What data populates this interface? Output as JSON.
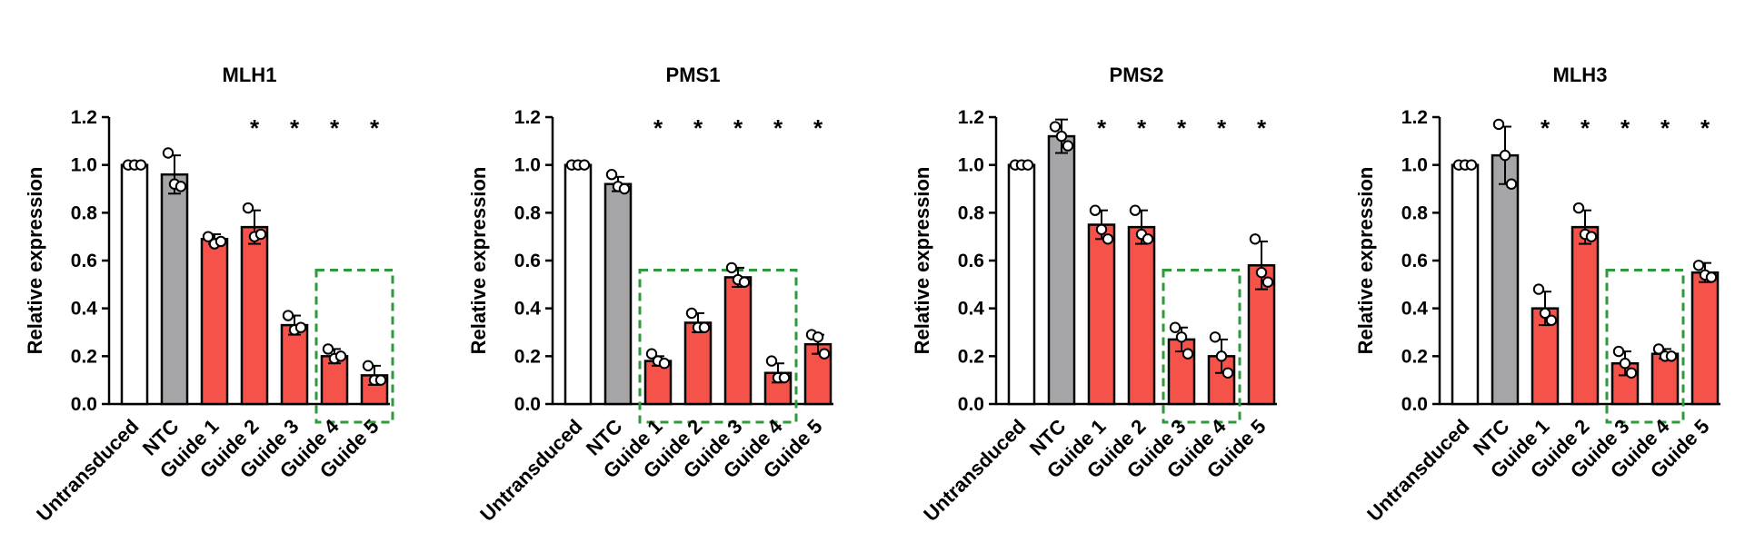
{
  "colors": {
    "untransduced": "#ffffff",
    "ntc": "#a6a6a8",
    "guide": "#f5524a",
    "highlight_box": "#2e9a3a",
    "axis": "#000000"
  },
  "chart_data": [
    {
      "type": "bar",
      "title": "MLH1",
      "ylabel": "Relative expression",
      "xlabel": "",
      "ylim": [
        0,
        1.2
      ],
      "yticks": [
        "0.0",
        "0.2",
        "0.4",
        "0.6",
        "0.8",
        "1.0",
        "1.2"
      ],
      "categories": [
        "Untransduced",
        "NTC",
        "Guide 1",
        "Guide 2",
        "Guide 3",
        "Guide 4",
        "Guide 5"
      ],
      "values": [
        1.0,
        0.96,
        0.69,
        0.74,
        0.33,
        0.2,
        0.12
      ],
      "errors": [
        0.0,
        0.08,
        0.02,
        0.07,
        0.04,
        0.03,
        0.04
      ],
      "points": [
        [
          1.0,
          1.0,
          1.0
        ],
        [
          1.05,
          0.92,
          0.91
        ],
        [
          0.7,
          0.67,
          0.68
        ],
        [
          0.82,
          0.7,
          0.71
        ],
        [
          0.37,
          0.31,
          0.32
        ],
        [
          0.23,
          0.19,
          0.2
        ],
        [
          0.16,
          0.1,
          0.1
        ]
      ],
      "significance": [
        "",
        "",
        "",
        "*",
        "*",
        "*",
        "*"
      ],
      "highlight": [
        "Guide 4",
        "Guide 5"
      ],
      "grid": false,
      "legend": "none"
    },
    {
      "type": "bar",
      "title": "PMS1",
      "ylabel": "Relative expression",
      "xlabel": "",
      "ylim": [
        0,
        1.2
      ],
      "yticks": [
        "0.0",
        "0.2",
        "0.4",
        "0.6",
        "0.8",
        "1.0",
        "1.2"
      ],
      "categories": [
        "Untransduced",
        "NTC",
        "Guide 1",
        "Guide 2",
        "Guide 3",
        "Guide 4",
        "Guide 5"
      ],
      "values": [
        1.0,
        0.92,
        0.18,
        0.34,
        0.53,
        0.13,
        0.25
      ],
      "errors": [
        0.0,
        0.03,
        0.02,
        0.04,
        0.04,
        0.04,
        0.04
      ],
      "points": [
        [
          1.0,
          1.0,
          1.0
        ],
        [
          0.96,
          0.91,
          0.9
        ],
        [
          0.21,
          0.18,
          0.17
        ],
        [
          0.38,
          0.32,
          0.32
        ],
        [
          0.57,
          0.52,
          0.51
        ],
        [
          0.18,
          0.11,
          0.11
        ],
        [
          0.29,
          0.28,
          0.21
        ]
      ],
      "significance": [
        "",
        "",
        "*",
        "*",
        "*",
        "*",
        "*"
      ],
      "highlight": [
        "Guide 1",
        "Guide 4"
      ],
      "grid": false,
      "legend": "none"
    },
    {
      "type": "bar",
      "title": "PMS2",
      "ylabel": "Relative expression",
      "xlabel": "",
      "ylim": [
        0,
        1.2
      ],
      "yticks": [
        "0.0",
        "0.2",
        "0.4",
        "0.6",
        "0.8",
        "1.0",
        "1.2"
      ],
      "categories": [
        "Untransduced",
        "NTC",
        "Guide 1",
        "Guide 2",
        "Guide 3",
        "Guide 4",
        "Guide 5"
      ],
      "values": [
        1.0,
        1.12,
        0.75,
        0.74,
        0.27,
        0.2,
        0.58
      ],
      "errors": [
        0.0,
        0.07,
        0.06,
        0.07,
        0.05,
        0.07,
        0.1
      ],
      "points": [
        [
          1.0,
          1.0,
          1.0
        ],
        [
          1.16,
          1.12,
          1.08
        ],
        [
          0.81,
          0.73,
          0.69
        ],
        [
          0.81,
          0.71,
          0.69
        ],
        [
          0.32,
          0.28,
          0.21
        ],
        [
          0.28,
          0.2,
          0.13
        ],
        [
          0.69,
          0.55,
          0.51
        ]
      ],
      "significance": [
        "",
        "",
        "*",
        "*",
        "*",
        "*",
        "*"
      ],
      "highlight": [
        "Guide 3",
        "Guide 4"
      ],
      "grid": false,
      "legend": "none"
    },
    {
      "type": "bar",
      "title": "MLH3",
      "ylabel": "Relative expression",
      "xlabel": "",
      "ylim": [
        0,
        1.2
      ],
      "yticks": [
        "0.0",
        "0.2",
        "0.4",
        "0.6",
        "0.8",
        "1.0",
        "1.2"
      ],
      "categories": [
        "Untransduced",
        "NTC",
        "Guide 1",
        "Guide 2",
        "Guide 3",
        "Guide 4",
        "Guide 5"
      ],
      "values": [
        1.0,
        1.04,
        0.4,
        0.74,
        0.17,
        0.21,
        0.55
      ],
      "errors": [
        0.0,
        0.12,
        0.07,
        0.07,
        0.05,
        0.02,
        0.04
      ],
      "points": [
        [
          1.0,
          1.0,
          1.0
        ],
        [
          1.17,
          1.04,
          0.92
        ],
        [
          0.48,
          0.38,
          0.35
        ],
        [
          0.82,
          0.71,
          0.7
        ],
        [
          0.22,
          0.17,
          0.13
        ],
        [
          0.23,
          0.2,
          0.2
        ],
        [
          0.58,
          0.54,
          0.53
        ]
      ],
      "significance": [
        "",
        "",
        "*",
        "*",
        "*",
        "*",
        "*"
      ],
      "highlight": [
        "Guide 3",
        "Guide 4"
      ],
      "grid": false,
      "legend": "none"
    }
  ]
}
